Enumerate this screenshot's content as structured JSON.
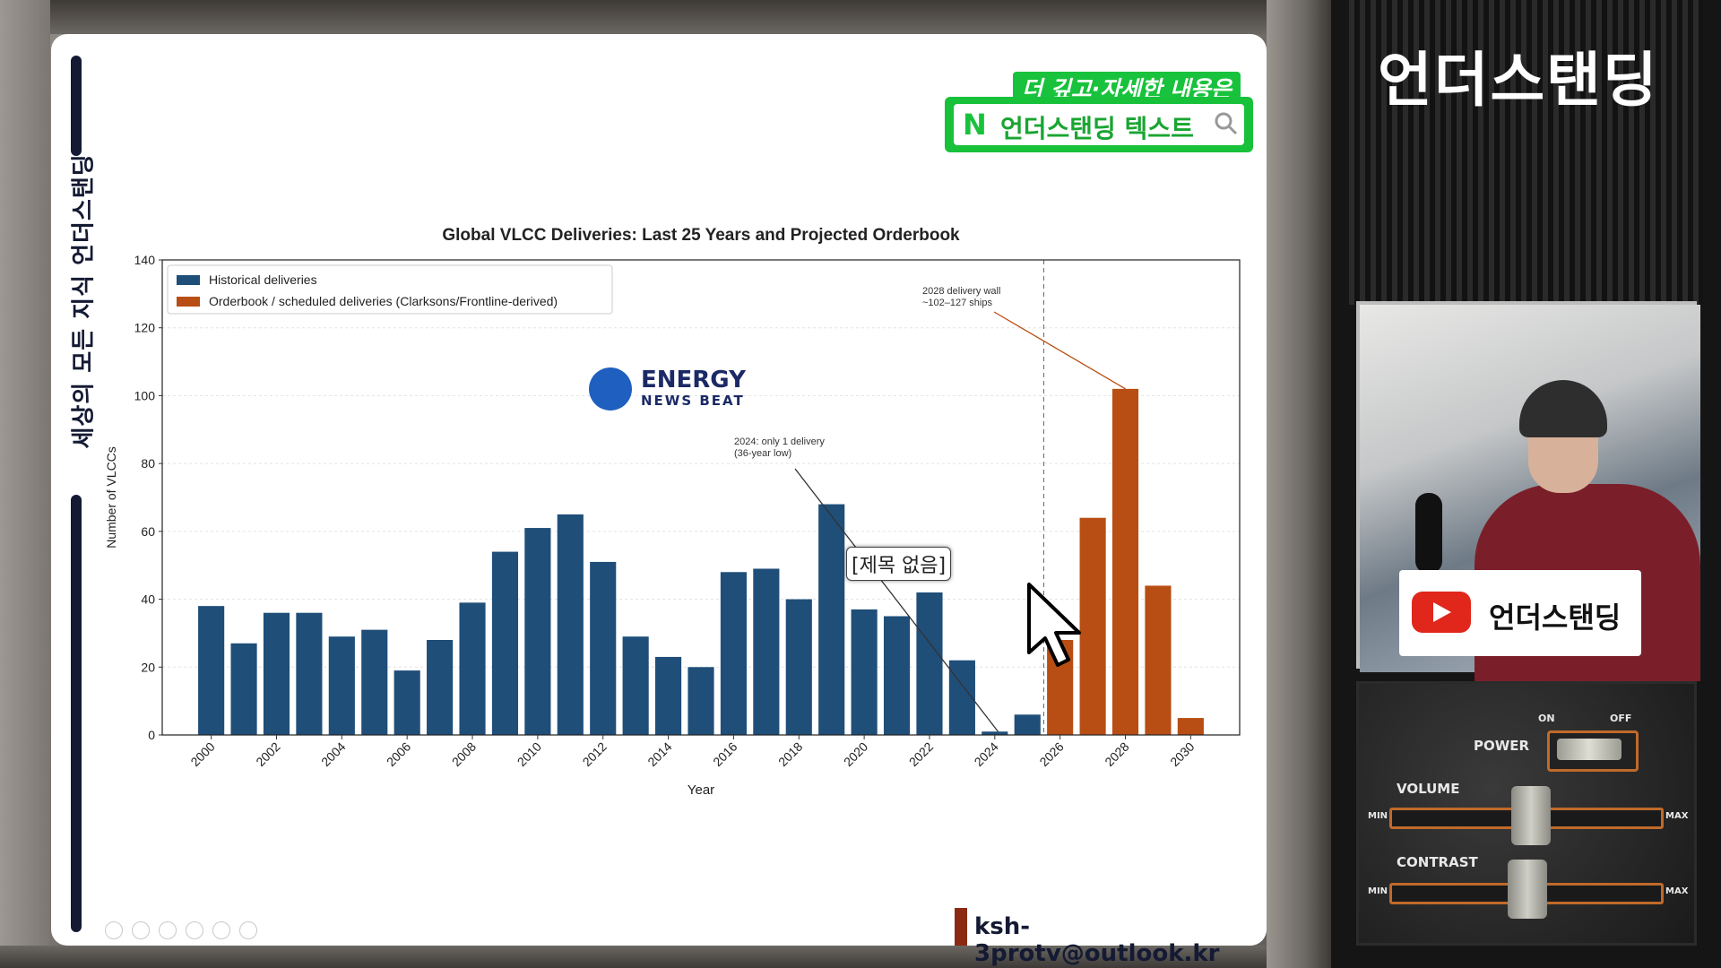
{
  "left_banner": {
    "text": "세상의 모든 지식  언더스탠딩"
  },
  "top_badge": {
    "small": "더 깊고·자세한 내용은",
    "n_logo": "N",
    "main": "언더스탠딩 텍스트"
  },
  "email": "ksh-3protv@outlook.kr",
  "tooltip": "[제목 없음]",
  "watermark": {
    "line1": "ENERGY",
    "line2": "NEWS BEAT"
  },
  "chart_data": {
    "type": "bar",
    "title": "Global VLCC Deliveries: Last 25 Years and Projected Orderbook",
    "xlabel": "Year",
    "ylabel": "Number of VLCCs",
    "ylim": [
      0,
      140
    ],
    "yticks": [
      0,
      20,
      40,
      60,
      80,
      100,
      120,
      140
    ],
    "xticks": [
      "2000",
      "2002",
      "2004",
      "2006",
      "2008",
      "2010",
      "2012",
      "2014",
      "2016",
      "2018",
      "2020",
      "2022",
      "2024",
      "2026",
      "2028",
      "2030"
    ],
    "legend_position": "top-left",
    "series": [
      {
        "name": "Historical deliveries",
        "color": "#1f4e79",
        "x": [
          2000,
          2001,
          2002,
          2003,
          2004,
          2005,
          2006,
          2007,
          2008,
          2009,
          2010,
          2011,
          2012,
          2013,
          2014,
          2015,
          2016,
          2017,
          2018,
          2019,
          2020,
          2021,
          2022,
          2023,
          2024,
          2025
        ],
        "values": [
          38,
          27,
          36,
          36,
          29,
          31,
          19,
          28,
          39,
          54,
          61,
          65,
          51,
          29,
          23,
          20,
          48,
          49,
          40,
          68,
          37,
          35,
          42,
          22,
          1,
          6
        ]
      },
      {
        "name": "Orderbook / scheduled deliveries (Clarksons/Frontline-derived)",
        "color": "#b84e14",
        "x": [
          2026,
          2027,
          2028,
          2029,
          2030
        ],
        "values": [
          28,
          64,
          102,
          44,
          5
        ]
      }
    ],
    "annotations": [
      {
        "text_lines": [
          "2024: only 1 delivery",
          "(36-year low)"
        ],
        "target_x": 2024,
        "target_y": 1
      },
      {
        "text_lines": [
          "2028 delivery wall",
          "~102–127 ships"
        ],
        "target_x": 2028,
        "target_y": 102
      }
    ],
    "vline_x": 2025.5
  },
  "right_panel": {
    "title": "언더스탠딩",
    "channel_card": "언더스탠딩",
    "controls": {
      "power": "POWER",
      "on": "ON",
      "off": "OFF",
      "volume": "VOLUME",
      "contrast": "CONTRAST",
      "min": "MIN",
      "max": "MAX"
    }
  }
}
